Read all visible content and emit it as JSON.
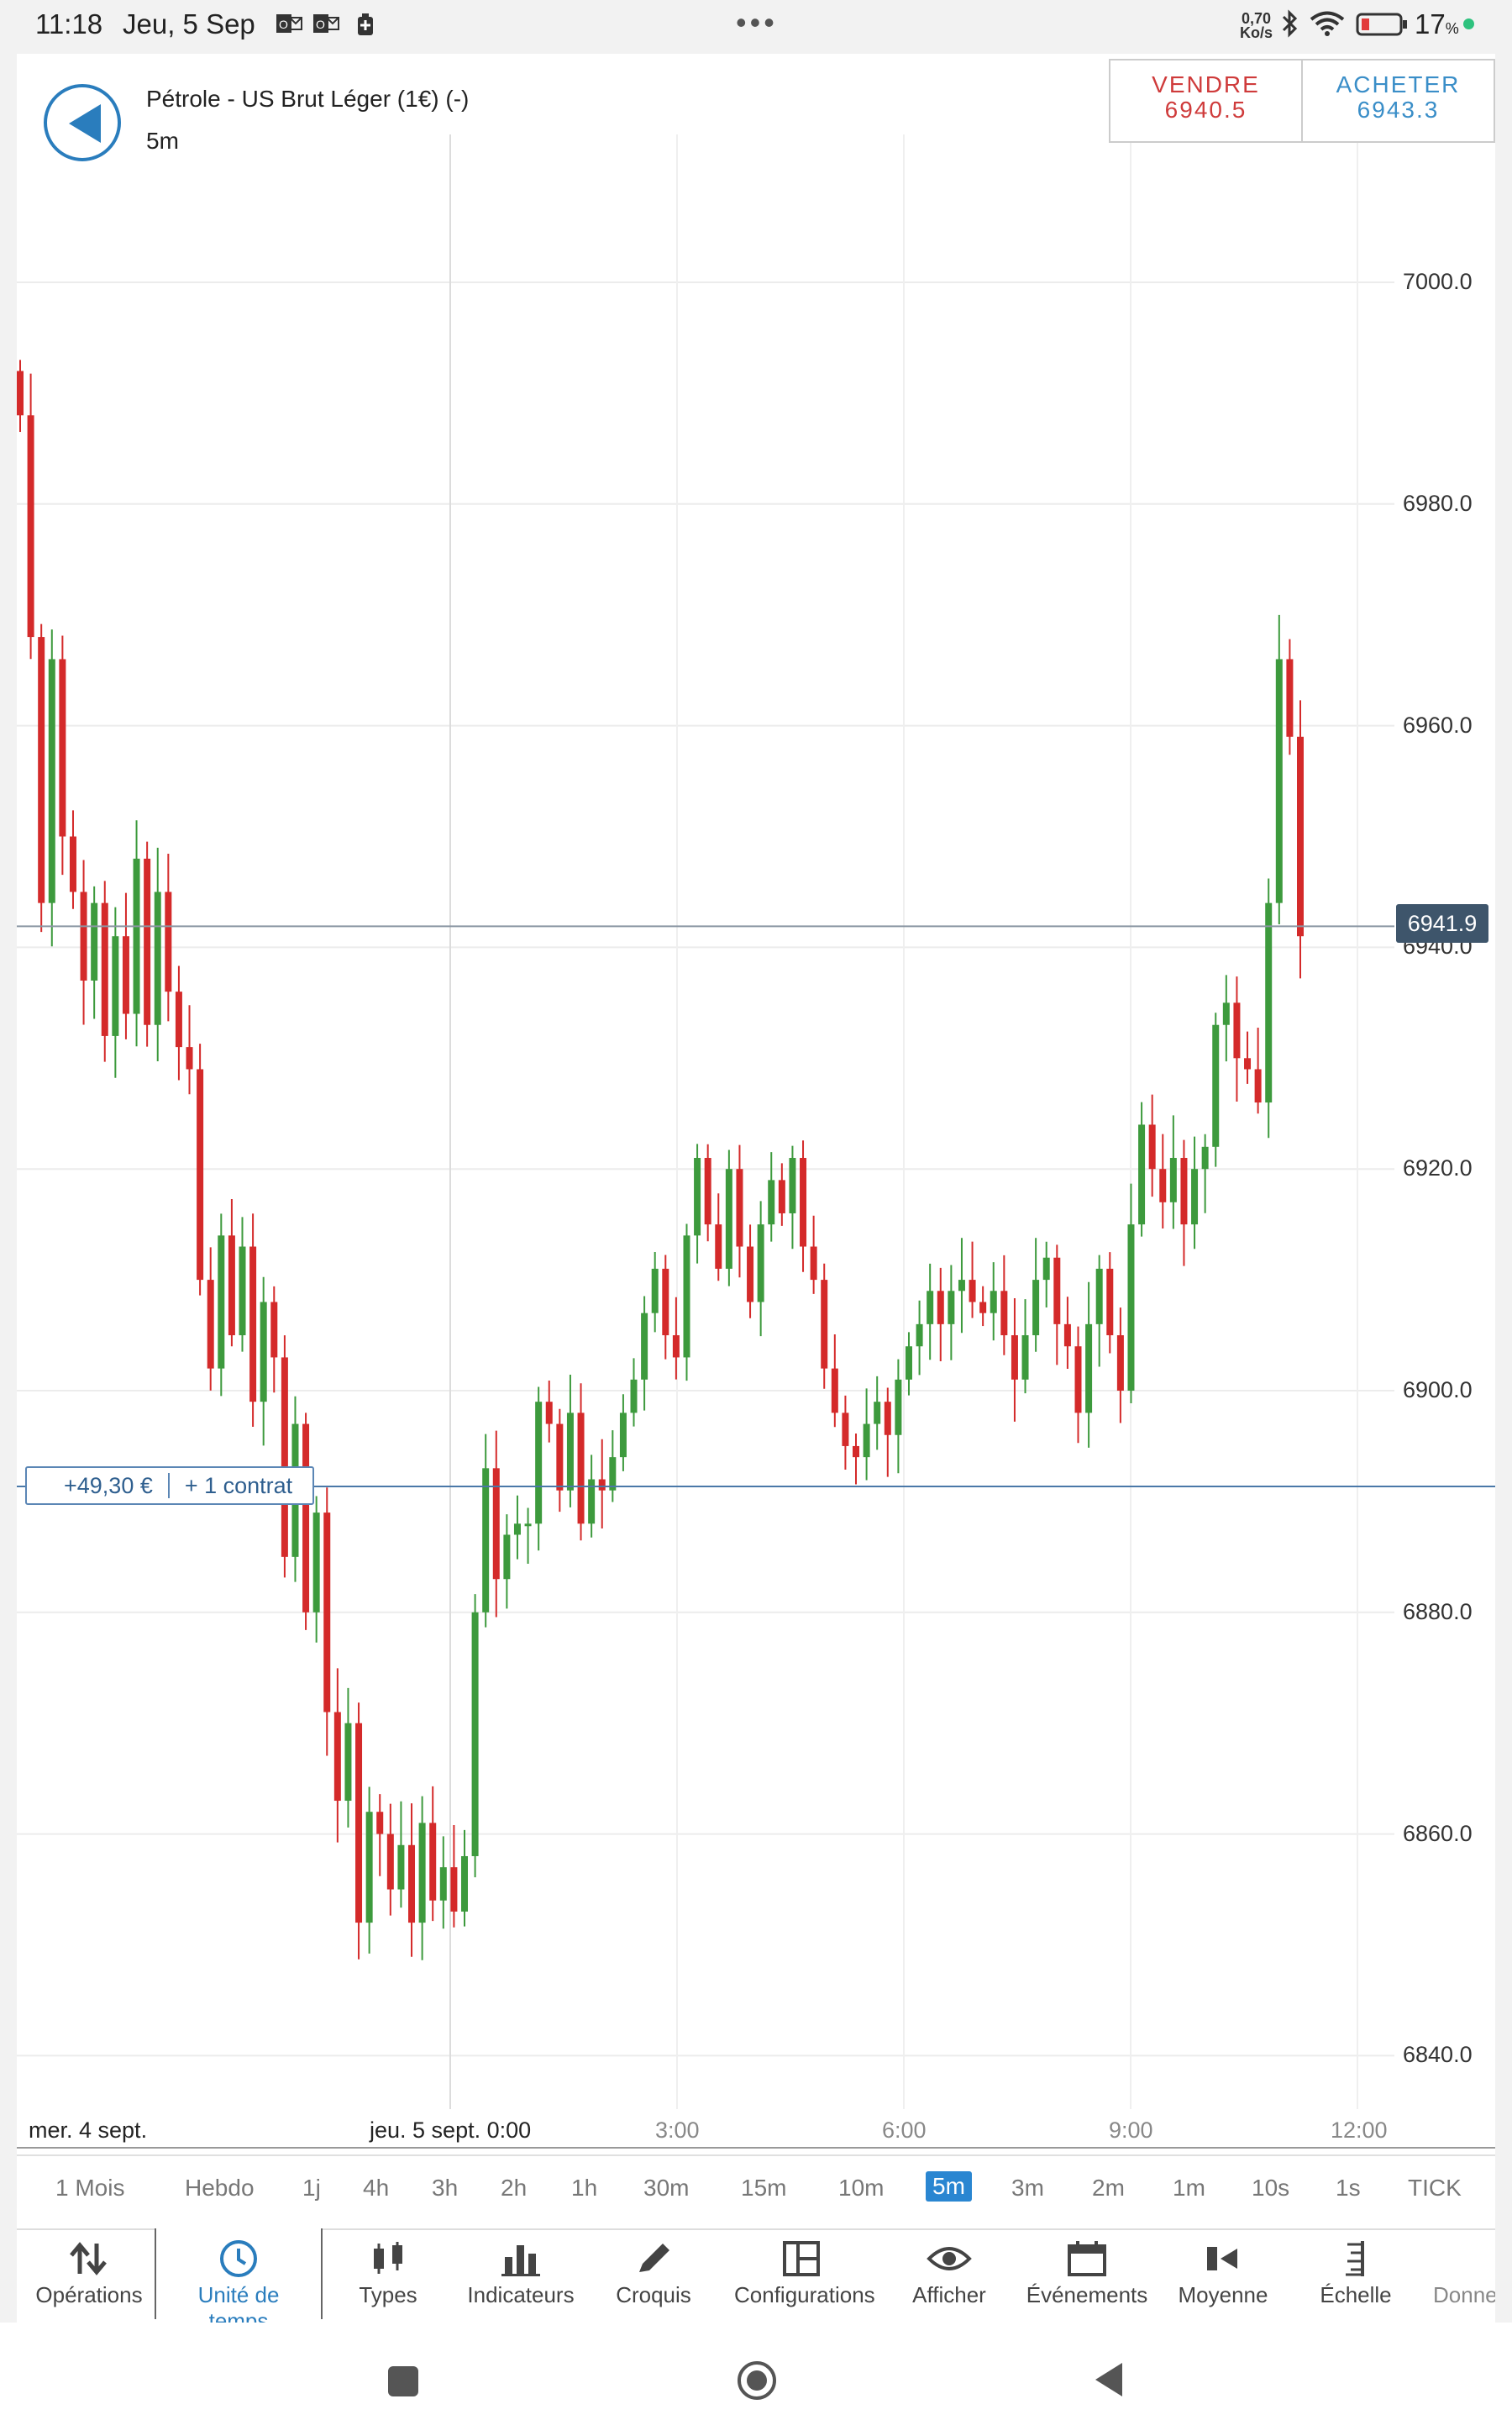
{
  "status_bar": {
    "time": "11:18",
    "date": "Jeu, 5 Sep",
    "more": "•••",
    "net_speed_value": "0,70",
    "net_speed_unit": "Ko/s",
    "battery": "17",
    "battery_unit": "%",
    "icons": [
      "outlook-icon",
      "outlook-icon",
      "battery-saver-icon",
      "bluetooth-icon",
      "wifi-icon",
      "battery-icon"
    ]
  },
  "header": {
    "instrument": "Pétrole - US Brut Léger (1€) (-)",
    "timeframe": "5m",
    "sell_label": "VENDRE",
    "sell_price": "6940.5",
    "buy_label": "ACHETER",
    "buy_price": "6943.3"
  },
  "chart": {
    "last_price": "6941.9",
    "position_pnl": "+49,30 €",
    "position_qty": "+ 1 contrat",
    "price_labels": [
      "7000.0",
      "6980.0",
      "6960.0",
      "6940.0",
      "6920.0",
      "6900.0",
      "6880.0",
      "6860.0",
      "6840.0"
    ],
    "time_labels": [
      {
        "text": "mer. 4 sept."
      },
      {
        "text": "jeu. 5 sept. 0:00"
      },
      {
        "text": "3:00"
      },
      {
        "text": "6:00"
      },
      {
        "text": "9:00"
      },
      {
        "text": "12:00"
      }
    ],
    "colors": {
      "up": "#3d9a3d",
      "down": "#d42a2a",
      "position": "#4a78a8"
    }
  },
  "chart_data": {
    "type": "candlestick",
    "ylim": [
      6835,
      7015
    ],
    "y_ticks": [
      6840,
      6860,
      6880,
      6900,
      6920,
      6940,
      6960,
      6980,
      7000
    ],
    "x_ticks": [
      "mer. 4 sept.",
      "jeu. 5 sept. 0:00",
      "3:00",
      "6:00",
      "9:00",
      "12:00"
    ],
    "series": [
      {
        "values": [
          6988,
          6968,
          6944,
          6966,
          6950,
          6945,
          6937,
          6944,
          6932,
          6941,
          6934,
          6948,
          6933,
          6945,
          6936,
          6931,
          6929,
          6910,
          6902,
          6914,
          6905,
          6913,
          6899,
          6908,
          6903,
          6885,
          6897,
          6880,
          6889,
          6871,
          6863,
          6870,
          6852,
          6862,
          6860,
          6855,
          6859,
          6852,
          6861,
          6854,
          6857,
          6853,
          6858,
          6880,
          6893,
          6883,
          6887,
          6888,
          6888,
          6899,
          6897,
          6891,
          6898,
          6888,
          6892,
          6891,
          6894,
          6898,
          6901,
          6907,
          6911,
          6905,
          6903,
          6914,
          6921,
          6915,
          6911,
          6920,
          6913,
          6908,
          6915,
          6919,
          6916,
          6921,
          6913,
          6910,
          6902,
          6898,
          6895,
          6894,
          6897,
          6899,
          6896,
          6901,
          6904,
          6906,
          6909,
          6906,
          6909,
          6910,
          6908,
          6907,
          6909,
          6905,
          6901,
          6905,
          6910,
          6912,
          6906,
          6904,
          6898,
          6906,
          6911,
          6905,
          6900,
          6915,
          6924,
          6920,
          6917,
          6921,
          6915,
          6920,
          6922,
          6933,
          6935,
          6930,
          6929,
          6926,
          6944,
          6966,
          6959,
          6941
        ]
      }
    ]
  },
  "timeframes": [
    "1 Mois",
    "Hebdo",
    "1j",
    "4h",
    "3h",
    "2h",
    "1h",
    "30m",
    "15m",
    "10m",
    "5m",
    "3m",
    "2m",
    "1m",
    "10s",
    "1s",
    "TICK"
  ],
  "active_timeframe": "5m",
  "toolbar": [
    {
      "label": "Opérations",
      "icon": "arrows-up-down-icon"
    },
    {
      "label": "Unité de temps",
      "icon": "clock-icon"
    },
    {
      "label": "Types",
      "icon": "candlestick-icon"
    },
    {
      "label": "Indicateurs",
      "icon": "bar-chart-icon"
    },
    {
      "label": "Croquis",
      "icon": "pencil-icon"
    },
    {
      "label": "Configurations",
      "icon": "layout-icon"
    },
    {
      "label": "Afficher",
      "icon": "eye-icon"
    },
    {
      "label": "Événements",
      "icon": "calendar-icon"
    },
    {
      "label": "Moyenne",
      "icon": "average-icon"
    },
    {
      "label": "Échelle",
      "icon": "scale-icon"
    },
    {
      "label": "Donne",
      "icon": "data-icon"
    }
  ],
  "active_tool": "Unité de temps"
}
